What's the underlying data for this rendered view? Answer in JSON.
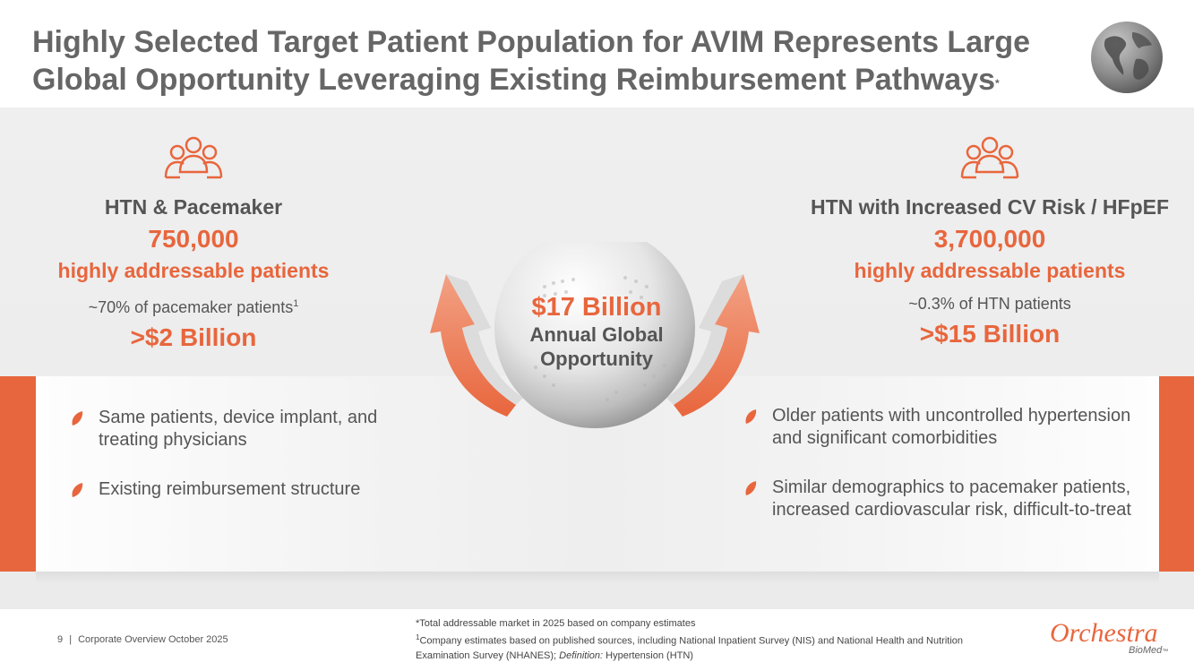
{
  "title": {
    "line1": "Highly Selected Target Patient Population for AVIM Represents Large",
    "line2": "Global Opportunity Leveraging Existing Reimbursement Pathways",
    "footnote_mark": "*"
  },
  "icons": {
    "header": "globe-icon",
    "segment": "people-group-icon",
    "bullet": "leaf-bullet-icon"
  },
  "colors": {
    "accent": "#e8663d",
    "text": "#555555",
    "band": "#ececec"
  },
  "left": {
    "heading": "HTN & Pacemaker",
    "number": "750,000",
    "subtitle": "highly addressable patients",
    "note": "~70% of pacemaker patients",
    "note_sup": "1",
    "money": ">$2 Billion",
    "bullets": [
      "Same patients, device implant, and treating physicians",
      "Existing reimbursement structure"
    ]
  },
  "right": {
    "heading": "HTN with Increased CV Risk / HFpEF",
    "number": "3,700,000",
    "subtitle": "highly addressable patients",
    "note": "~0.3% of HTN patients",
    "money": ">$15 Billion",
    "bullets": [
      "Older patients with uncontrolled hypertension and significant comorbidities",
      "Similar demographics to pacemaker patients, increased cardiovascular risk, difficult-to-treat"
    ]
  },
  "center": {
    "amount": "$17 Billion",
    "caption_line1": "Annual Global",
    "caption_line2": "Opportunity"
  },
  "footer": {
    "page": "9",
    "separator": "|",
    "deck": "Corporate Overview October 2025",
    "note1": "*Total addressable market in 2025 based on company estimates",
    "note2_sup": "1",
    "note2": "Company estimates based on published sources, including National Inpatient Survey (NIS) and National Health and Nutrition Examination Survey (NHANES);",
    "note2_def_label": "Definition:",
    "note2_def": "Hypertension (HTN)"
  },
  "logo": {
    "main": "Orchestra",
    "sub": "BioMed",
    "tm": "™"
  }
}
